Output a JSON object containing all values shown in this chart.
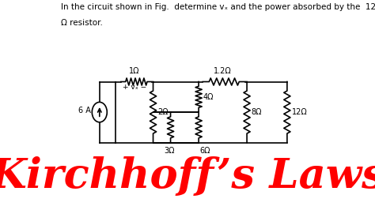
{
  "title_text": "In the circuit shown in Fig.  determine vₓ and the power absorbed by the  12",
  "title_line2": "Ω resistor.",
  "kirchhoff_text": "Kirchhoff’s Laws",
  "bg_color": "#ffffff",
  "circuit_color": "#000000",
  "kirchhoff_color": "#ff0000",
  "current_source_label": "6 A",
  "r1": "1Ω",
  "r2": "2Ω",
  "r3": "3Ω",
  "r4": "4Ω",
  "r12": "1.2Ω",
  "r6": "6Ω",
  "r8": "8Ω",
  "r_right": "12Ω",
  "vx_label": "+ vₓ −",
  "kirchhoff_fontsize": 38,
  "label_fontsize": 7.0,
  "title_fontsize": 7.5
}
